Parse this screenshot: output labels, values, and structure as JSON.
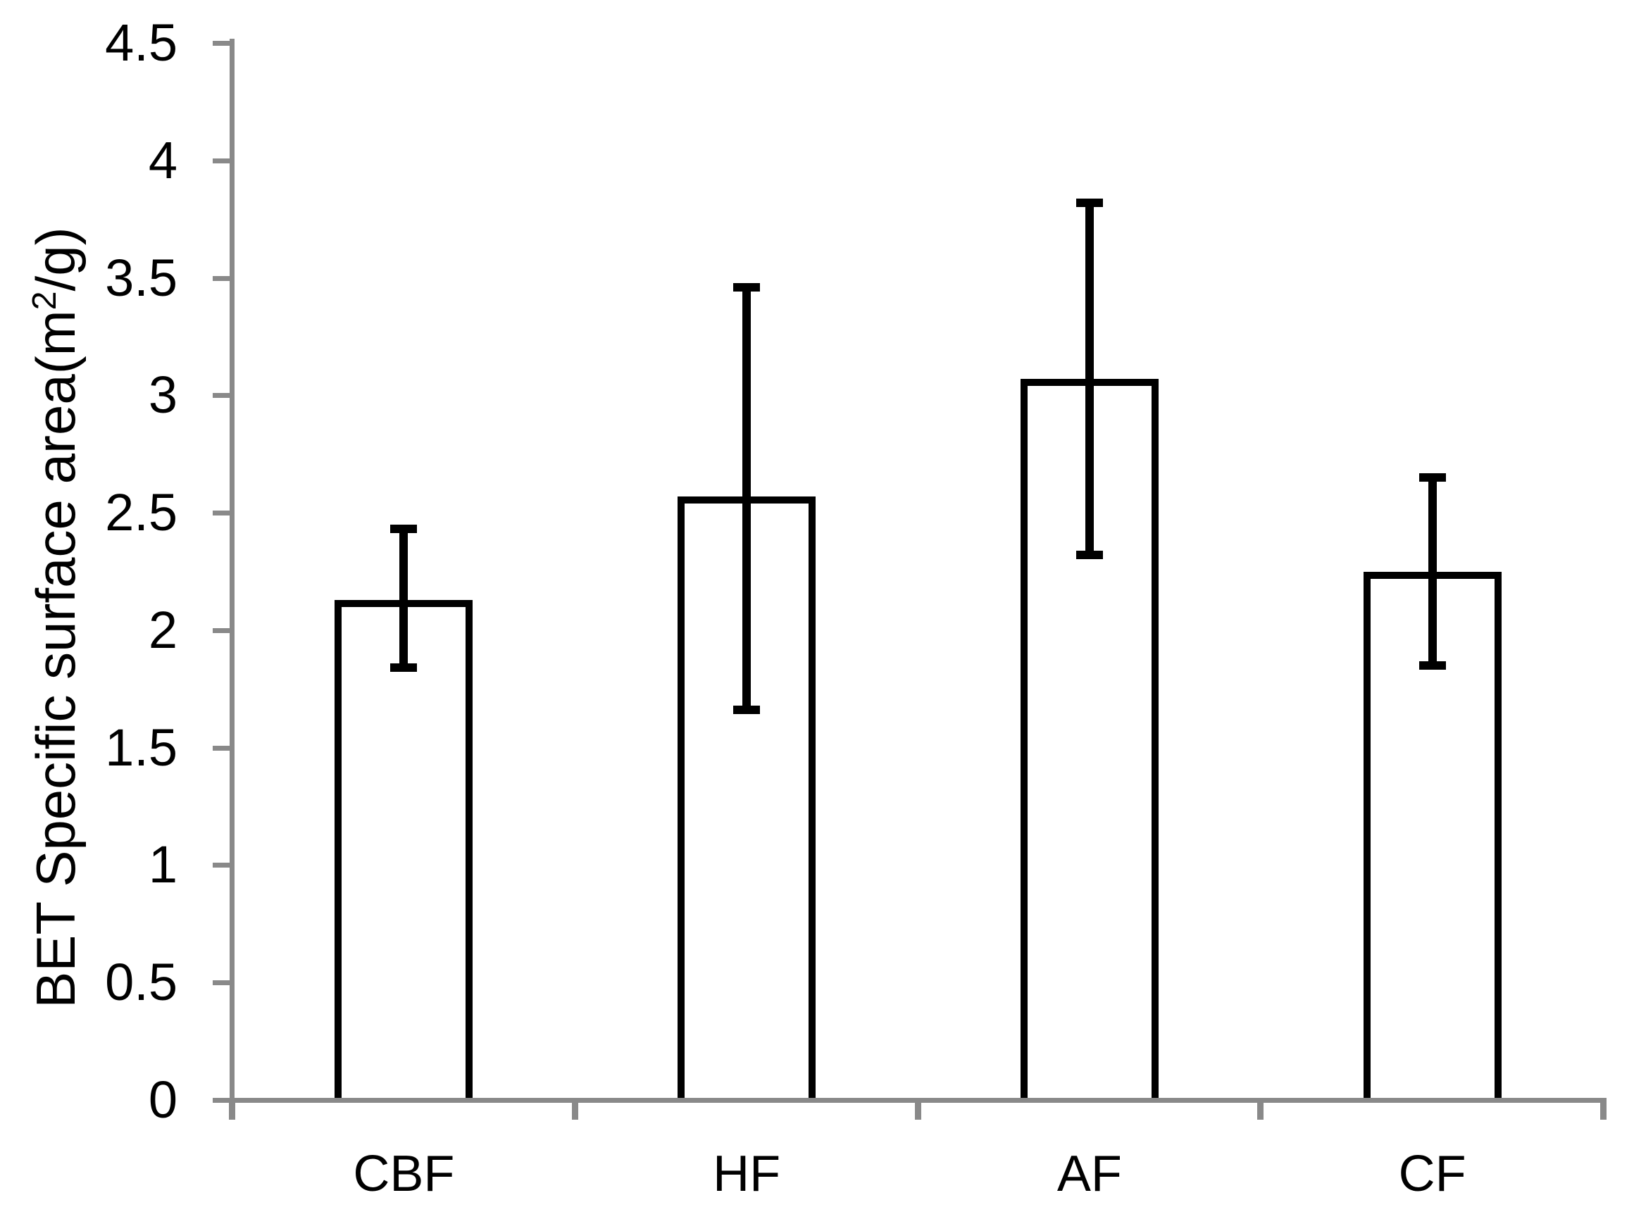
{
  "figure": {
    "ylabel_pre": "BET Specific surface area(m",
    "ylabel_sup": "2",
    "ylabel_post": "/g)"
  },
  "chart_data": {
    "type": "bar",
    "title": "",
    "categories": [
      "CBF",
      "HF",
      "AF",
      "CF"
    ],
    "values": [
      2.13,
      2.57,
      3.07,
      2.25
    ],
    "error_high": [
      2.43,
      3.46,
      3.82,
      2.65
    ],
    "error_low": [
      1.84,
      1.66,
      2.32,
      1.85
    ],
    "ylabel": "BET Specific surface area(m²/g)",
    "xlabel": "",
    "ylim": [
      0,
      4.5
    ],
    "ytick_step": 0.5,
    "ytick_labels": [
      "0",
      "0.5",
      "1",
      "1.5",
      "2",
      "2.5",
      "3",
      "3.5",
      "4",
      "4.5"
    ],
    "grid": false,
    "legend": false,
    "bar_fill": "#ffffff",
    "bar_border": "#000000",
    "error_color": "#000000",
    "axis_color": "#898989",
    "text_color": "#000000"
  }
}
